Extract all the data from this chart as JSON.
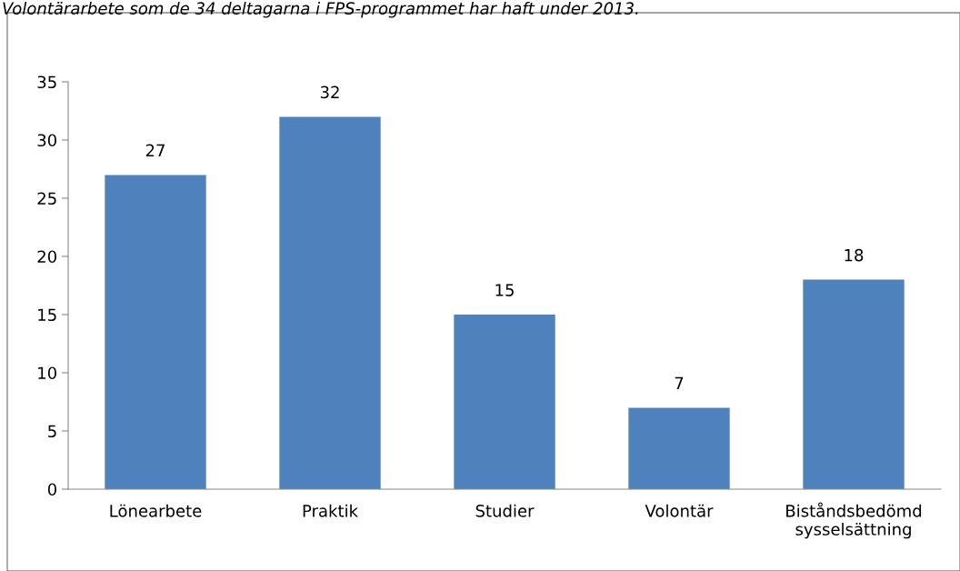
{
  "chart_data": {
    "type": "bar",
    "title": "Volontärarbete som de 34 deltagarna i FPS-programmet har haft under 2013.",
    "categories": [
      "Lönearbete",
      "Praktik",
      "Studier",
      "Volontär",
      "Biståndsbedömd\nsysselsättning"
    ],
    "values": [
      27,
      32,
      15,
      7,
      18
    ],
    "color": "#4f81bd",
    "ylim": [
      0,
      35
    ],
    "yticks": [
      0,
      5,
      10,
      15,
      20,
      25,
      30,
      35
    ],
    "grid": false,
    "data_labels": true
  }
}
